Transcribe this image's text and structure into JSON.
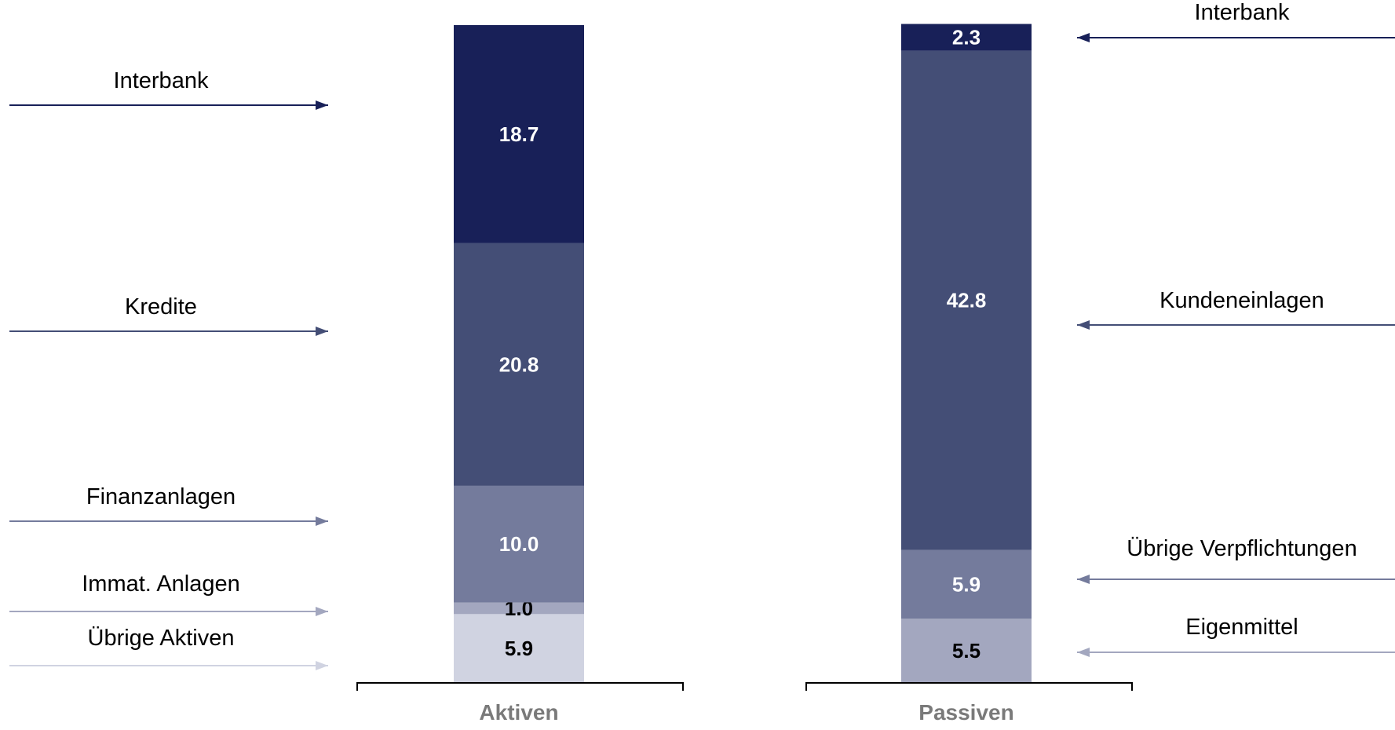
{
  "chart_data": {
    "type": "bar",
    "stacked": true,
    "categories": [
      "Aktiven",
      "Passiven"
    ],
    "ylim": [
      0,
      56.4
    ],
    "grid": false,
    "legend": "none",
    "stacks": [
      {
        "category": "Aktiven",
        "segments": [
          {
            "name": "Übrige Aktiven",
            "value": 5.9,
            "label": "5.9",
            "color": "#d0d3e1",
            "text_color": "#000000"
          },
          {
            "name": "Immat. Anlagen",
            "value": 1.0,
            "label": "1.0",
            "color": "#a3a7bf",
            "text_color": "#000000"
          },
          {
            "name": "Finanzanlagen",
            "value": 10.0,
            "label": "10.0",
            "color": "#747b9c",
            "text_color": "#ffffff"
          },
          {
            "name": "Kredite",
            "value": 20.8,
            "label": "20.8",
            "color": "#444e76",
            "text_color": "#ffffff"
          },
          {
            "name": "Interbank",
            "value": 18.7,
            "label": "18.7",
            "color": "#182058",
            "text_color": "#ffffff"
          }
        ]
      },
      {
        "category": "Passiven",
        "segments": [
          {
            "name": "Eigenmittel",
            "value": 5.5,
            "label": "5.5",
            "color": "#a3a7bf",
            "text_color": "#000000"
          },
          {
            "name": "Übrige Verpflichtungen",
            "value": 5.9,
            "label": "5.9",
            "color": "#747b9c",
            "text_color": "#ffffff"
          },
          {
            "name": "Kundeneinlagen",
            "value": 42.8,
            "label": "42.8",
            "color": "#444e76",
            "text_color": "#ffffff"
          },
          {
            "name": "Interbank",
            "value": 2.3,
            "label": "2.3",
            "color": "#182058",
            "text_color": "#ffffff"
          }
        ]
      }
    ]
  }
}
